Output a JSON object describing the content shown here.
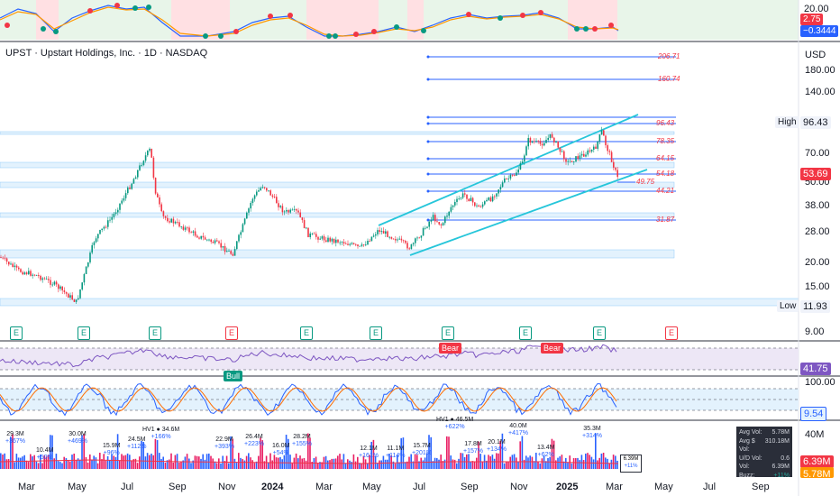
{
  "symbol_title": "UPST · Upstart Holdings, Inc. · 1D · NASDAQ",
  "currency": "USD",
  "top_osc": {
    "axis": [
      "20.00"
    ],
    "tags": [
      "2.75",
      "−0.3444"
    ]
  },
  "price_axis": [
    "206.71",
    "180.00",
    "140.00",
    "96.43",
    "70.00",
    "53.69",
    "50.00",
    "38.00",
    "28.00",
    "20.00",
    "15.00",
    "11.93",
    "9.00"
  ],
  "high_label": "High",
  "high_value": "96.43",
  "low_label": "Low",
  "low_value": "11.93",
  "last_price": "53.69",
  "fib_levels": [
    "206.71",
    "160.74",
    "96.43",
    "78.35",
    "64.15",
    "54.18",
    "49.75",
    "44.21",
    "31.87"
  ],
  "earnings_markers": [
    "E",
    "E",
    "E",
    "E",
    "E",
    "E",
    "E",
    "E",
    "E",
    "E",
    "E",
    "E"
  ],
  "rsi_value": "41.75",
  "rsi_tags": [
    "Bear",
    "Bear",
    "Bull"
  ],
  "stoch_axis": "100.00",
  "stoch_value": "9.54",
  "volume_axis": "40M",
  "volume_tags": [
    "6.39M",
    "5.78M"
  ],
  "volume_labels": [
    {
      "v": "29.3M",
      "p": "+367%"
    },
    {
      "v": "10.4M",
      "p": "+50%"
    },
    {
      "v": "30.0M",
      "p": "+469%"
    },
    {
      "v": "15.9M",
      "p": "+96%"
    },
    {
      "v": "24.5M",
      "p": "+112%"
    },
    {
      "v": "HV1 ● 34.6M",
      "p": "+166%"
    },
    {
      "v": "22.9M",
      "p": "+393%"
    },
    {
      "v": "26.4M",
      "p": "+223%"
    },
    {
      "v": "16.0M",
      "p": "+54%"
    },
    {
      "v": "28.2M",
      "p": "+155%"
    },
    {
      "v": "12.1M",
      "p": "+161%"
    },
    {
      "v": "11.1M",
      "p": "+114%"
    },
    {
      "v": "15.7M",
      "p": "+201%"
    },
    {
      "v": "HV1 ● 46.5M",
      "p": "+622%"
    },
    {
      "v": "17.8M",
      "p": "+157%"
    },
    {
      "v": "20.1M",
      "p": "+134%"
    },
    {
      "v": "40.0M",
      "p": "+417%"
    },
    {
      "v": "13.4M",
      "p": "+62%"
    },
    {
      "v": "35.3M",
      "p": "+314%"
    }
  ],
  "last_vol_tag": {
    "v": "6.39M",
    "p": "+11%"
  },
  "stats": [
    {
      "k": "Avg Vol:",
      "v": "5.78M"
    },
    {
      "k": "Avg $ Vol:",
      "v": "310.18M"
    },
    {
      "k": "U/D Vol:",
      "v": "0.6"
    },
    {
      "k": "Vol:",
      "v": "6.39M"
    },
    {
      "k": "Buzz:",
      "v": "+11%"
    }
  ],
  "months": [
    "Mar",
    "May",
    "Jul",
    "Sep",
    "Nov",
    "2024",
    "Mar",
    "May",
    "Jul",
    "Sep",
    "Nov",
    "2025",
    "Mar",
    "May",
    "Jul",
    "Sep"
  ],
  "colors": {
    "up": "#089981",
    "down": "#f23645",
    "accent": "#2962ff",
    "channel": "#26c6da"
  }
}
